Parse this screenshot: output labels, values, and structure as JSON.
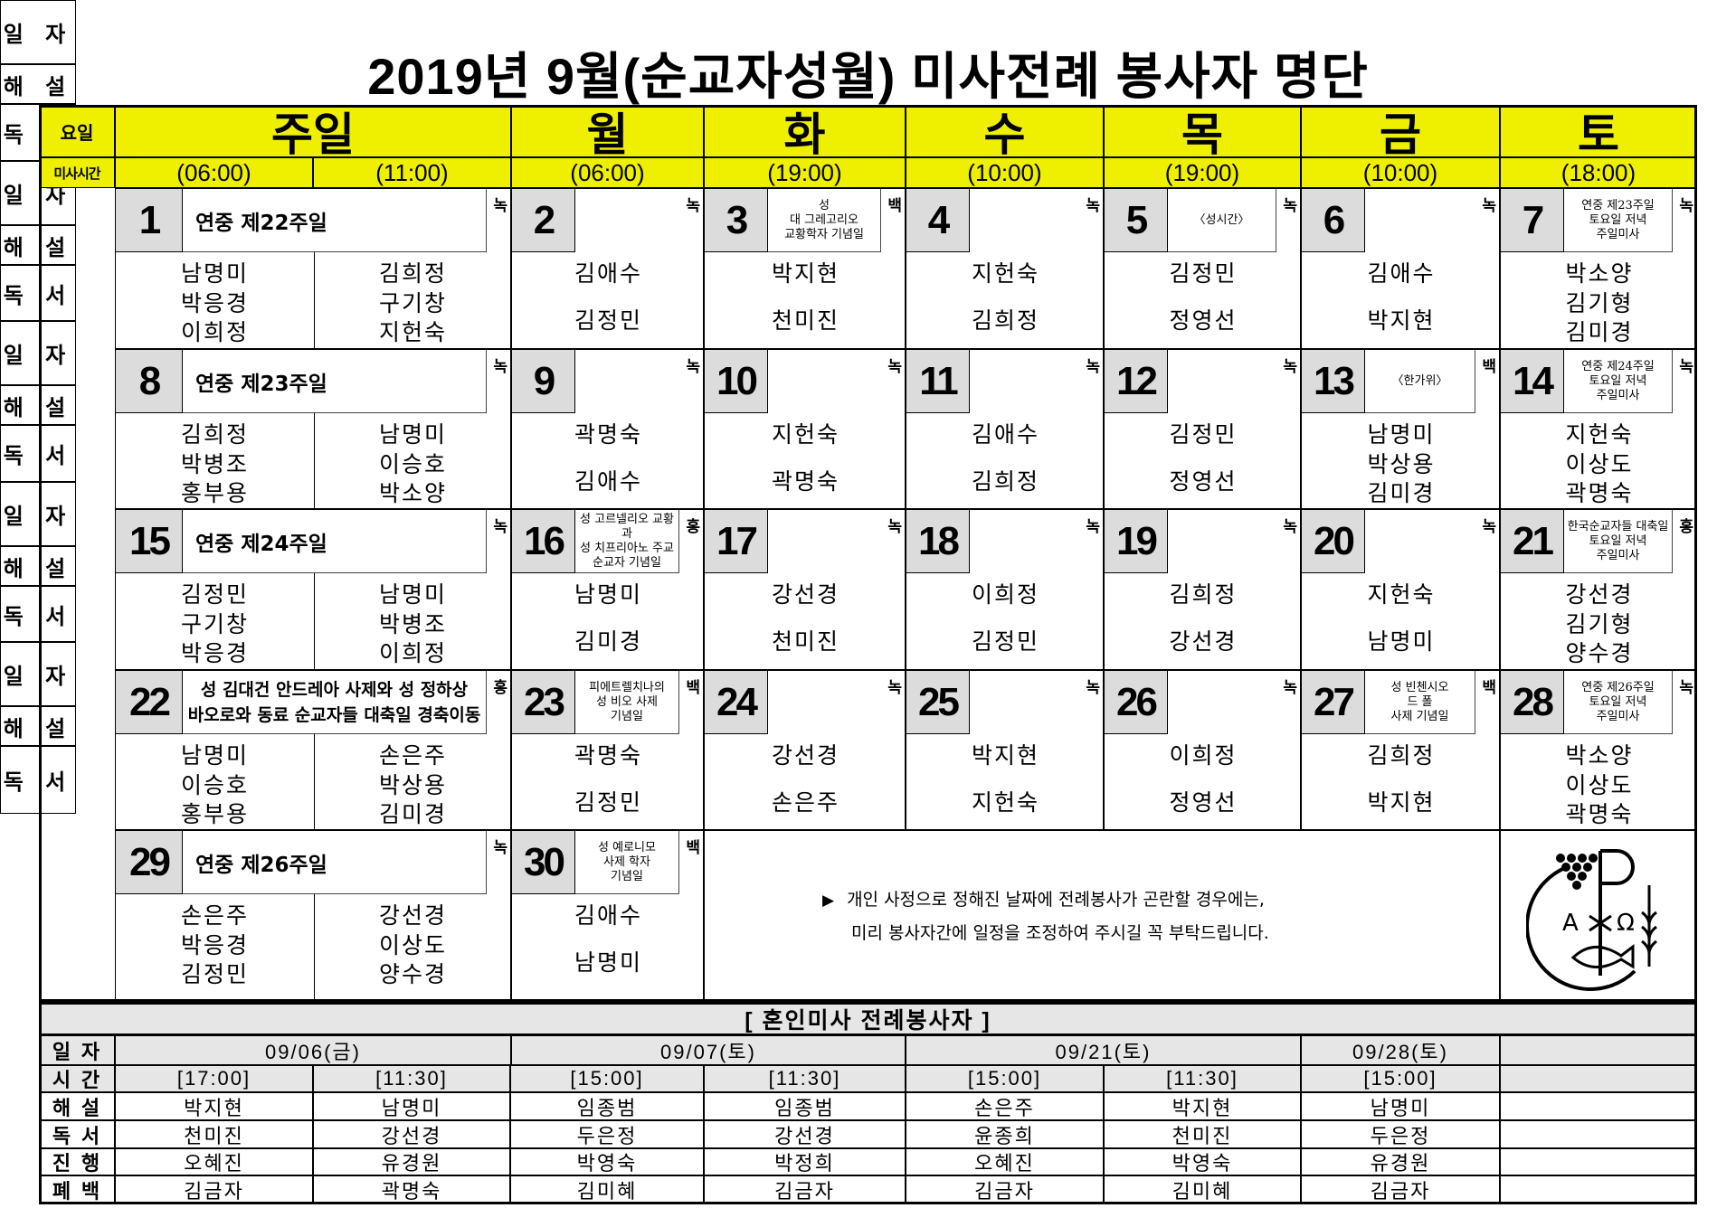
{
  "title": "2019년 9월(순교자성월) 미사전례 봉사자 명단",
  "header": {
    "day_label": "요일",
    "time_label": "미사시간",
    "weekdays": [
      "주일",
      "월",
      "화",
      "수",
      "목",
      "금",
      "토"
    ],
    "times": [
      "(06:00)",
      "(11:00)",
      "(06:00)",
      "(19:00)",
      "(10:00)",
      "(19:00)",
      "(10:00)",
      "(18:00)"
    ]
  },
  "row_labels": {
    "date": "일 자",
    "commentary": "해 설",
    "reading": "독 서"
  },
  "days": [
    {
      "date": "1",
      "wd": 0,
      "color": "녹",
      "note": "연중  제22주일",
      "early": [
        "남명미",
        "박응경",
        "이희정"
      ],
      "late": [
        "김희정",
        "구기창",
        "지헌숙"
      ]
    },
    {
      "date": "2",
      "wd": 1,
      "color": "녹",
      "note": "",
      "names": [
        "김애수",
        "김정민"
      ]
    },
    {
      "date": "3",
      "wd": 2,
      "color": "백",
      "note": "성\n대 그레고리오\n교황학자 기념일",
      "names": [
        "박지현",
        "천미진"
      ]
    },
    {
      "date": "4",
      "wd": 3,
      "color": "녹",
      "note": "",
      "names": [
        "지헌숙",
        "김희정"
      ]
    },
    {
      "date": "5",
      "wd": 4,
      "color": "녹",
      "note": "〈성시간〉",
      "names": [
        "김정민",
        "정영선"
      ]
    },
    {
      "date": "6",
      "wd": 5,
      "color": "녹",
      "note": "",
      "names": [
        "김애수",
        "박지현"
      ]
    },
    {
      "date": "7",
      "wd": 6,
      "color": "녹",
      "note": "연중 제23주일\n토요일 저녁\n주일미사",
      "names": [
        "박소양",
        "김기형",
        "김미경"
      ]
    },
    {
      "date": "8",
      "wd": 0,
      "color": "녹",
      "note": "연중  제23주일",
      "early": [
        "김희정",
        "박병조",
        "홍부용"
      ],
      "late": [
        "남명미",
        "이승호",
        "박소양"
      ]
    },
    {
      "date": "9",
      "wd": 1,
      "color": "녹",
      "note": "",
      "names": [
        "곽명숙",
        "김애수"
      ]
    },
    {
      "date": "10",
      "wd": 2,
      "color": "녹",
      "note": "",
      "names": [
        "지헌숙",
        "곽명숙"
      ]
    },
    {
      "date": "11",
      "wd": 3,
      "color": "녹",
      "note": "",
      "names": [
        "김애수",
        "김희정"
      ]
    },
    {
      "date": "12",
      "wd": 4,
      "color": "녹",
      "note": "",
      "names": [
        "김정민",
        "정영선"
      ]
    },
    {
      "date": "13",
      "wd": 5,
      "color": "백",
      "note": "〈한가위〉",
      "names": [
        "남명미",
        "박상용",
        "김미경"
      ]
    },
    {
      "date": "14",
      "wd": 6,
      "color": "녹",
      "note": "연중 제24주일\n토요일 저녁\n주일미사",
      "names": [
        "지헌숙",
        "이상도",
        "곽명숙"
      ]
    },
    {
      "date": "15",
      "wd": 0,
      "color": "녹",
      "note": "연중  제24주일",
      "early": [
        "김정민",
        "구기창",
        "박응경"
      ],
      "late": [
        "남명미",
        "박병조",
        "이희정"
      ]
    },
    {
      "date": "16",
      "wd": 1,
      "color": "홍",
      "note": "성 고르넬리오 교황과\n성 치프리아노 주교\n순교자 기념일",
      "names": [
        "남명미",
        "김미경"
      ]
    },
    {
      "date": "17",
      "wd": 2,
      "color": "녹",
      "note": "",
      "names": [
        "강선경",
        "천미진"
      ]
    },
    {
      "date": "18",
      "wd": 3,
      "color": "녹",
      "note": "",
      "names": [
        "이희정",
        "김정민"
      ]
    },
    {
      "date": "19",
      "wd": 4,
      "color": "녹",
      "note": "",
      "names": [
        "김희정",
        "강선경"
      ]
    },
    {
      "date": "20",
      "wd": 5,
      "color": "녹",
      "note": "",
      "names": [
        "지헌숙",
        "남명미"
      ]
    },
    {
      "date": "21",
      "wd": 6,
      "color": "홍",
      "note": "한국순교자들 대축일\n토요일 저녁\n주일미사",
      "names": [
        "강선경",
        "김기형",
        "양수경"
      ]
    },
    {
      "date": "22",
      "wd": 0,
      "color": "홍",
      "note": "성 김대건 안드레아 사제와 성 정하상\n바오로와 동료 순교자들 대축일 경축이동",
      "early": [
        "남명미",
        "이승호",
        "홍부용"
      ],
      "late": [
        "손은주",
        "박상용",
        "김미경"
      ]
    },
    {
      "date": "23",
      "wd": 1,
      "color": "백",
      "note": "피에트렐치나의\n성 비오 사제\n기념일",
      "names": [
        "곽명숙",
        "김정민"
      ]
    },
    {
      "date": "24",
      "wd": 2,
      "color": "녹",
      "note": "",
      "names": [
        "강선경",
        "손은주"
      ]
    },
    {
      "date": "25",
      "wd": 3,
      "color": "녹",
      "note": "",
      "names": [
        "박지현",
        "지헌숙"
      ]
    },
    {
      "date": "26",
      "wd": 4,
      "color": "녹",
      "note": "",
      "names": [
        "이희정",
        "정영선"
      ]
    },
    {
      "date": "27",
      "wd": 5,
      "color": "백",
      "note": "성 빈첸시오\n드 폴\n사제 기념일",
      "names": [
        "김희정",
        "박지현"
      ]
    },
    {
      "date": "28",
      "wd": 6,
      "color": "녹",
      "note": "연중 제26주일\n토요일 저녁\n주일미사",
      "names": [
        "박소양",
        "이상도",
        "곽명숙"
      ]
    },
    {
      "date": "29",
      "wd": 0,
      "color": "녹",
      "note": "연중  제26주일",
      "early": [
        "손은주",
        "박응경",
        "김정민"
      ],
      "late": [
        "강선경",
        "이상도",
        "양수경"
      ]
    },
    {
      "date": "30",
      "wd": 1,
      "color": "백",
      "note": "성 예로니모\n사제 학자\n기념일",
      "names": [
        "김애수",
        "남명미"
      ]
    }
  ],
  "notice": {
    "bullet": "▶",
    "line1": "개인 사정으로 정해진 날짜에 전례봉사가 곤란할 경우에는,",
    "line2": "미리 봉사자간에 일정을 조정하여 주시길 꼭 부탁드립니다."
  },
  "logo": {
    "icon": "chi-rho-alpha-omega-fish-grapes-wheat",
    "alpha": "A",
    "omega": "Ω"
  },
  "wedding": {
    "title": "[ 혼인미사 전례봉사자 ]",
    "labels": [
      "일 자",
      "시 간",
      "해 설",
      "독 서",
      "진 행",
      "폐 백"
    ],
    "dates": [
      "09/06(금)",
      "09/07(토)",
      "09/21(토)",
      "09/28(토)"
    ],
    "slots": [
      {
        "time": "[17:00]",
        "commentary": "박지현",
        "reading": "천미진",
        "host": "오혜진",
        "offering": "김금자"
      },
      {
        "time": "[11:30]",
        "commentary": "남명미",
        "reading": "강선경",
        "host": "유경원",
        "offering": "곽명숙"
      },
      {
        "time": "[15:00]",
        "commentary": "임종범",
        "reading": "두은정",
        "host": "박영숙",
        "offering": "김미혜"
      },
      {
        "time": "[11:30]",
        "commentary": "임종범",
        "reading": "강선경",
        "host": "박정희",
        "offering": "김금자"
      },
      {
        "time": "[15:00]",
        "commentary": "손은주",
        "reading": "윤종희",
        "host": "오혜진",
        "offering": "김금자"
      },
      {
        "time": "[11:30]",
        "commentary": "박지현",
        "reading": "천미진",
        "host": "박영숙",
        "offering": "김미혜"
      },
      {
        "time": "[15:00]",
        "commentary": "남명미",
        "reading": "두은정",
        "host": "유경원",
        "offering": "김금자"
      }
    ]
  },
  "colors": {
    "header_yellow": "#eef000",
    "date_box_gray": "#dcdcdc",
    "wedding_gray": "#e6e6e6"
  }
}
